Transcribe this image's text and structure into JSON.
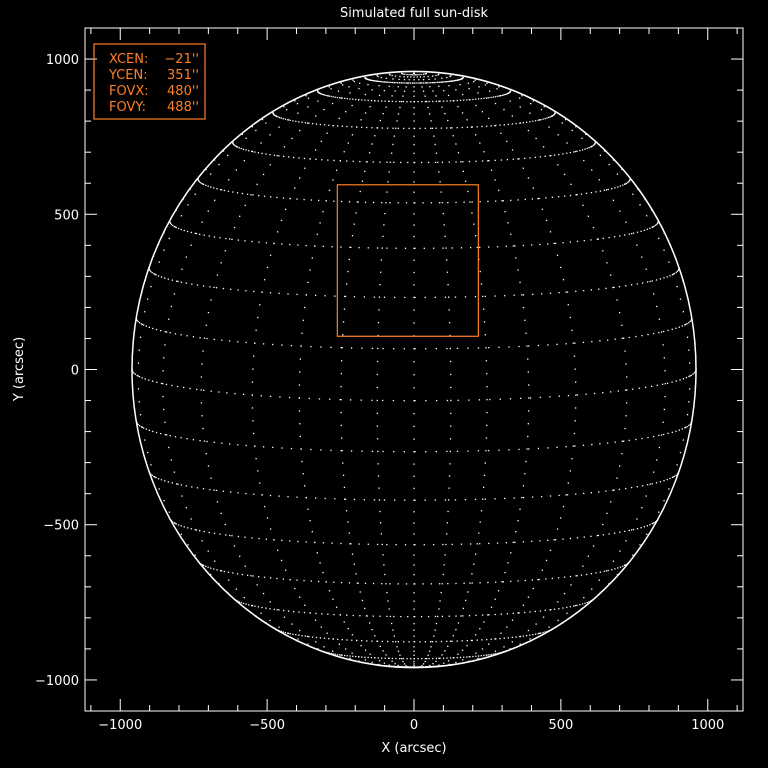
{
  "chart_data": {
    "type": "scatter",
    "title": "Simulated full sun-disk",
    "xlabel": "X (arcsec)",
    "ylabel": "Y (arcsec)",
    "xlim": [
      -1120,
      1120
    ],
    "ylim": [
      -1100,
      1100
    ],
    "xticks": [
      -1000,
      -500,
      0,
      500,
      1000
    ],
    "yticks": [
      -1000,
      -500,
      0,
      500,
      1000
    ],
    "xtick_labels": [
      "−1000",
      "−500",
      "0",
      "500",
      "1000"
    ],
    "ytick_labels": [
      "−1000",
      "−500",
      "0",
      "500",
      "1000"
    ],
    "solar_radius_arcsec": 960,
    "grid": "heliographic lat/lon dotted grid",
    "fov_box": {
      "xcen": -21,
      "ycen": 351,
      "fovx": 480,
      "fovy": 488
    },
    "legend": {
      "position": "top-left",
      "lines": [
        {
          "label": "XCEN:",
          "value": "−21''"
        },
        {
          "label": "YCEN:",
          "value": "351''"
        },
        {
          "label": "FOVX:",
          "value": "480''"
        },
        {
          "label": "FOVY:",
          "value": "488''"
        }
      ]
    },
    "colors": {
      "background": "#000000",
      "axes": "#ffffff",
      "grid": "#ffffff",
      "box": "#ff7f27"
    }
  }
}
